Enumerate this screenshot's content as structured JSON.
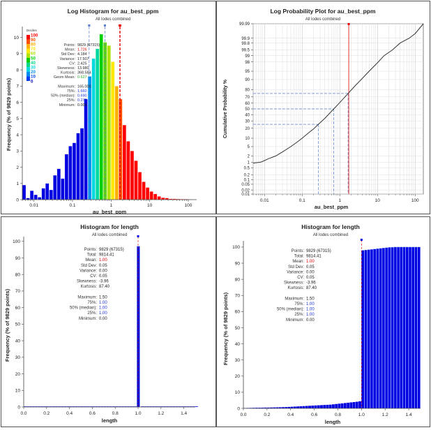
{
  "colors": {
    "blue": "#0000e0",
    "red_line": "#e00000",
    "median_line": "#5a7fd0",
    "mean_text": "#e00000",
    "quant_text": "#1a35d8",
    "geom_text": "#22aa22"
  },
  "chart_data": [
    {
      "id": "log_hist",
      "type": "bar",
      "title": "Log Histogram for au_best_ppm",
      "subtitle": "All lodes combined",
      "xlabel": "au_best_ppm",
      "ylabel": "Frequency (% of 9829 points)",
      "xscale": "log",
      "xlim": [
        0.005,
        165
      ],
      "ylim": [
        0,
        10.5
      ],
      "xticks": [
        {
          "v": 0.01,
          "label": "0.01"
        },
        {
          "v": 0.1,
          "label": "0.1"
        },
        {
          "v": 1,
          "label": "1"
        },
        {
          "v": 10,
          "label": "10"
        },
        {
          "v": 100,
          "label": "100"
        }
      ],
      "yticks": [
        0,
        1,
        2,
        3,
        4,
        5,
        6,
        7,
        8,
        9,
        10
      ],
      "bars_log10": [
        {
          "lo": -2.3,
          "hi": -2.2,
          "v": 0.9
        },
        {
          "lo": -2.2,
          "hi": -2.1,
          "v": 0.1
        },
        {
          "lo": -2.1,
          "hi": -2.0,
          "v": 0.55
        },
        {
          "lo": -2.0,
          "hi": -1.9,
          "v": 0.3
        },
        {
          "lo": -1.9,
          "hi": -1.8,
          "v": 0.15
        },
        {
          "lo": -1.8,
          "hi": -1.7,
          "v": 0.7
        },
        {
          "lo": -1.7,
          "hi": -1.6,
          "v": 1.0
        },
        {
          "lo": -1.6,
          "hi": -1.5,
          "v": 0.6
        },
        {
          "lo": -1.5,
          "hi": -1.4,
          "v": 1.5
        },
        {
          "lo": -1.4,
          "hi": -1.3,
          "v": 1.9
        },
        {
          "lo": -1.3,
          "hi": -1.2,
          "v": 1.3
        },
        {
          "lo": -1.2,
          "hi": -1.1,
          "v": 2.8
        },
        {
          "lo": -1.1,
          "hi": -1.0,
          "v": 3.3
        },
        {
          "lo": -1.0,
          "hi": -0.9,
          "v": 3.5
        },
        {
          "lo": -0.9,
          "hi": -0.8,
          "v": 4.1
        },
        {
          "lo": -0.8,
          "hi": -0.7,
          "v": 4.4
        },
        {
          "lo": -0.7,
          "hi": -0.6,
          "v": 6.2
        },
        {
          "lo": -0.6,
          "hi": -0.5,
          "v": 7.6
        },
        {
          "lo": -0.5,
          "hi": -0.4,
          "v": 8.7
        },
        {
          "lo": -0.4,
          "hi": -0.3,
          "v": 9.3
        },
        {
          "lo": -0.3,
          "hi": -0.2,
          "v": 10.2
        },
        {
          "lo": -0.2,
          "hi": -0.1,
          "v": 9.7
        },
        {
          "lo": -0.1,
          "hi": 0.0,
          "v": 9.5
        },
        {
          "lo": 0.0,
          "hi": 0.1,
          "v": 8.5
        },
        {
          "lo": 0.1,
          "hi": 0.2,
          "v": 7.0
        },
        {
          "lo": 0.2,
          "hi": 0.3,
          "v": 6.2
        },
        {
          "lo": 0.3,
          "hi": 0.4,
          "v": 4.6
        },
        {
          "lo": 0.4,
          "hi": 0.5,
          "v": 3.6
        },
        {
          "lo": 0.5,
          "hi": 0.6,
          "v": 3.0
        },
        {
          "lo": 0.6,
          "hi": 0.7,
          "v": 2.4
        },
        {
          "lo": 0.7,
          "hi": 0.8,
          "v": 1.7
        },
        {
          "lo": 0.8,
          "hi": 0.9,
          "v": 1.1
        },
        {
          "lo": 0.9,
          "hi": 1.0,
          "v": 0.75
        },
        {
          "lo": 1.0,
          "hi": 1.1,
          "v": 0.5
        },
        {
          "lo": 1.1,
          "hi": 1.2,
          "v": 0.35
        },
        {
          "lo": 1.2,
          "hi": 1.3,
          "v": 0.2
        },
        {
          "lo": 1.3,
          "hi": 1.4,
          "v": 0.12
        },
        {
          "lo": 1.4,
          "hi": 1.5,
          "v": 0.1
        },
        {
          "lo": 1.5,
          "hi": 1.6,
          "v": 0.05
        },
        {
          "lo": 1.6,
          "hi": 1.7,
          "v": 0.05
        },
        {
          "lo": 1.7,
          "hi": 1.8,
          "v": 0.04
        },
        {
          "lo": 1.8,
          "hi": 1.9,
          "v": 0.03
        },
        {
          "lo": 1.9,
          "hi": 2.0,
          "v": 0.03
        },
        {
          "lo": 2.0,
          "hi": 2.1,
          "v": 0.02
        }
      ],
      "lines": [
        {
          "v": 0.27,
          "kind": "q25"
        },
        {
          "v": 0.69,
          "kind": "median"
        },
        {
          "v": 1.66,
          "kind": "q75"
        },
        {
          "v": 1.726,
          "kind": "mean"
        }
      ],
      "legend": {
        "title": "Deciles",
        "labels": [
          "100",
          "90",
          "80",
          "70",
          "60",
          "50",
          "40",
          "30",
          "20",
          "10",
          "0"
        ],
        "colors": [
          "#ff0000",
          "#ff5000",
          "#ffb000",
          "#ffe800",
          "#b0e000",
          "#00d000",
          "#00d888",
          "#00d8e0",
          "#008cf0",
          "#0040f0",
          "#0000c8"
        ]
      },
      "stats": [
        {
          "label": "Points:",
          "value": "9829 (67315)",
          "c": "black"
        },
        {
          "label": "Mean:",
          "value": "1.726",
          "c": "red"
        },
        {
          "label": "Std Dev:",
          "value": "4.184",
          "c": "black"
        },
        {
          "label": "Variance:",
          "value": "17.507",
          "c": "black"
        },
        {
          "label": "CV:",
          "value": "2.425",
          "c": "black"
        },
        {
          "label": "Skewness:",
          "value": "13.980",
          "c": "black"
        },
        {
          "label": "Kurtosis:",
          "value": "368.584",
          "c": "black"
        },
        {
          "label": "Geom Mean:",
          "value": "0.627",
          "c": "green"
        },
        {
          "label": "",
          "value": "",
          "c": "black"
        },
        {
          "label": "Maximum:",
          "value": "165.000",
          "c": "black"
        },
        {
          "label": "75%:",
          "value": "1.660",
          "c": "blue"
        },
        {
          "label": "50% (median):",
          "value": "0.690",
          "c": "blue"
        },
        {
          "label": "25%:",
          "value": "0.270",
          "c": "blue"
        },
        {
          "label": "Minimum:",
          "value": "0.005",
          "c": "black"
        }
      ]
    },
    {
      "id": "log_prob",
      "type": "line",
      "title": "Log Probability Plot for au_best_ppm",
      "subtitle": "All lodes combined",
      "xlabel": "au_best_ppm",
      "ylabel": "Cumulative Probability %",
      "xscale": "log",
      "xlim": [
        0.005,
        165
      ],
      "yticks": [
        0.01,
        0.02,
        0.05,
        0.1,
        0.2,
        0.5,
        1,
        2,
        5,
        10,
        20,
        30,
        40,
        50,
        60,
        70,
        80,
        90,
        95,
        98,
        99,
        99.5,
        99.8,
        99.9,
        99.99
      ],
      "xticks": [
        {
          "v": 0.01,
          "label": "0.01"
        },
        {
          "v": 0.1,
          "label": "0.1"
        },
        {
          "v": 1,
          "label": "1"
        },
        {
          "v": 10,
          "label": "10"
        },
        {
          "v": 100,
          "label": "100"
        }
      ],
      "series_x": [
        0.005,
        0.008,
        0.01,
        0.013,
        0.02,
        0.03,
        0.05,
        0.07,
        0.1,
        0.15,
        0.2,
        0.27,
        0.4,
        0.69,
        1.0,
        1.66,
        2.5,
        4,
        6,
        10,
        15,
        25,
        40,
        70,
        100,
        165
      ],
      "series_y": [
        0.9,
        1.0,
        1.2,
        1.5,
        2.0,
        3.0,
        5.0,
        7.0,
        10.0,
        15.0,
        19.0,
        25.0,
        34.0,
        50.0,
        61.0,
        75.0,
        84.0,
        91.0,
        95.0,
        97.8,
        99.0,
        99.5,
        99.8,
        99.9,
        99.95,
        99.99
      ],
      "marker_lines": [
        {
          "x": 0.27,
          "p": 25
        },
        {
          "x": 0.69,
          "p": 50
        },
        {
          "x": 1.66,
          "p": 75
        }
      ],
      "mean_x": 1.726
    },
    {
      "id": "len_hist",
      "type": "bar",
      "title": "Histogram for length",
      "subtitle": "All lodes combined",
      "xlabel": "length",
      "ylabel": "Frequency (% of 9829 points)",
      "xlim": [
        0.0,
        1.5
      ],
      "ylim": [
        0,
        102
      ],
      "xticks": [
        0.0,
        0.2,
        0.4,
        0.6,
        0.8,
        1.0,
        1.2,
        1.4
      ],
      "xtick_labels": [
        "0.0",
        "0.2",
        "0.4",
        "0.6",
        "0.8",
        "1.0",
        "1.2",
        "1.4"
      ],
      "yticks": [
        0,
        10,
        20,
        30,
        40,
        50,
        60,
        70,
        80,
        90,
        100
      ],
      "peak": {
        "x0": 0.99,
        "x1": 1.015,
        "v": 97
      },
      "stats": [
        {
          "label": "Points:",
          "value": "9829 (67315)",
          "c": "black"
        },
        {
          "label": "Total:",
          "value": "9814.41",
          "c": "black"
        },
        {
          "label": "Mean:",
          "value": "1.00",
          "c": "red"
        },
        {
          "label": "Std Dev:",
          "value": "0.05",
          "c": "black"
        },
        {
          "label": "Variance:",
          "value": "0.00",
          "c": "black"
        },
        {
          "label": "CV:",
          "value": "0.05",
          "c": "black"
        },
        {
          "label": "Skewness:",
          "value": "-3.96",
          "c": "black"
        },
        {
          "label": "Kurtosis:",
          "value": "87.40",
          "c": "black"
        },
        {
          "label": "",
          "value": "",
          "c": "black"
        },
        {
          "label": "Maximum:",
          "value": "1.50",
          "c": "black"
        },
        {
          "label": "75%:",
          "value": "1.00",
          "c": "blue"
        },
        {
          "label": "50% (median):",
          "value": "1.00",
          "c": "blue"
        },
        {
          "label": "25%:",
          "value": "1.00",
          "c": "blue"
        },
        {
          "label": "Minimum:",
          "value": "0.00",
          "c": "black"
        }
      ]
    },
    {
      "id": "len_cum",
      "type": "bar",
      "title": "Histogram for length",
      "subtitle": "All lodes combined",
      "xlabel": "length",
      "ylabel": "Frequency (% of 9829 points)",
      "xlim": [
        0.0,
        1.5
      ],
      "ylim": [
        0,
        103
      ],
      "xticks": [
        0.0,
        0.2,
        0.4,
        0.6,
        0.8,
        1.0,
        1.2,
        1.4
      ],
      "xtick_labels": [
        "0.0",
        "0.2",
        "0.4",
        "0.6",
        "0.8",
        "1.0",
        "1.2",
        "1.4"
      ],
      "yticks": [
        0,
        10,
        20,
        30,
        40,
        50,
        60,
        70,
        80,
        90,
        100
      ],
      "bin_width": 0.025,
      "cum_values": [
        0.2,
        0.25,
        0.3,
        0.35,
        0.4,
        0.4,
        0.45,
        0.5,
        0.5,
        0.55,
        0.6,
        0.65,
        0.7,
        0.75,
        0.8,
        0.9,
        1.0,
        1.1,
        1.2,
        1.3,
        1.4,
        1.5,
        1.6,
        1.7,
        1.8,
        1.9,
        2.0,
        2.1,
        2.2,
        2.3,
        2.5,
        2.7,
        2.9,
        3.1,
        3.3,
        3.5,
        3.7,
        3.9,
        4.1,
        4.4,
        98.0,
        98.2,
        98.4,
        98.6,
        98.8,
        99.0,
        99.2,
        99.4,
        99.6,
        99.8,
        99.9,
        100,
        100,
        100,
        100,
        100,
        100,
        100,
        100,
        100
      ],
      "stats": [
        {
          "label": "Points:",
          "value": "9829 (67315)",
          "c": "black"
        },
        {
          "label": "Total:",
          "value": "9814.41",
          "c": "black"
        },
        {
          "label": "Mean:",
          "value": "1.00",
          "c": "red"
        },
        {
          "label": "Std Dev:",
          "value": "0.05",
          "c": "black"
        },
        {
          "label": "Variance:",
          "value": "0.00",
          "c": "black"
        },
        {
          "label": "CV:",
          "value": "0.05",
          "c": "black"
        },
        {
          "label": "Skewness:",
          "value": "-3.96",
          "c": "black"
        },
        {
          "label": "Kurtosis:",
          "value": "87.40",
          "c": "black"
        },
        {
          "label": "",
          "value": "",
          "c": "black"
        },
        {
          "label": "Maximum:",
          "value": "1.50",
          "c": "black"
        },
        {
          "label": "75%:",
          "value": "1.00",
          "c": "blue"
        },
        {
          "label": "50% (median):",
          "value": "1.00",
          "c": "blue"
        },
        {
          "label": "25%:",
          "value": "1.00",
          "c": "blue"
        },
        {
          "label": "Minimum:",
          "value": "0.00",
          "c": "black"
        }
      ]
    }
  ]
}
